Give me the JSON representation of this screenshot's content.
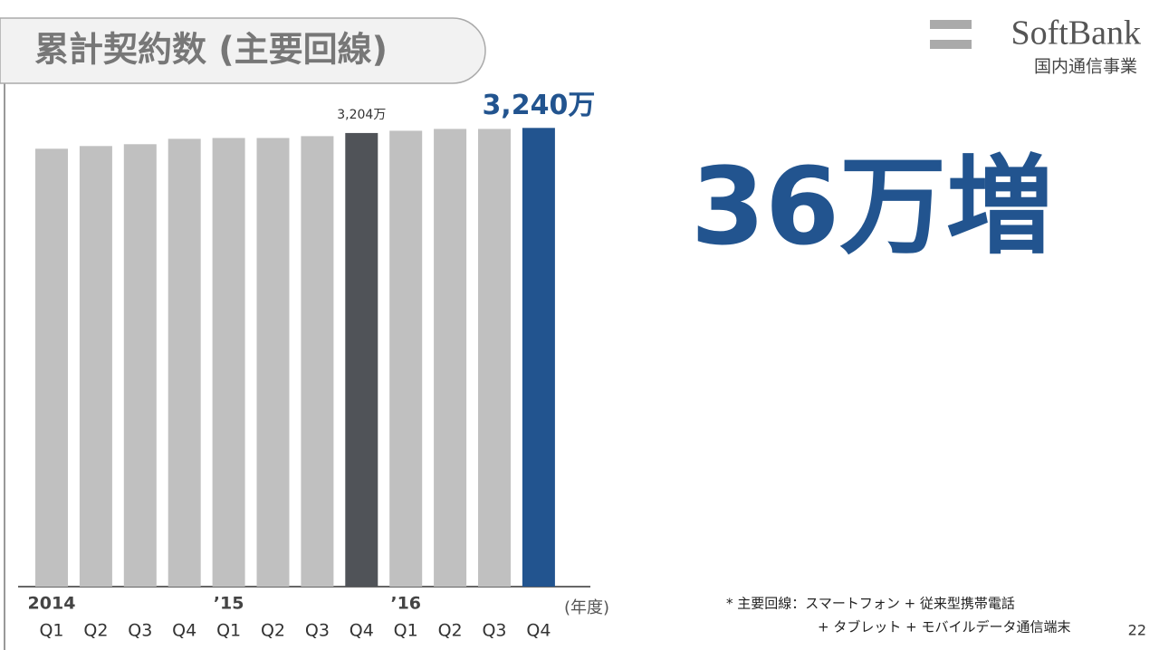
{
  "chart_data": {
    "type": "bar",
    "title": "累計契約数 (主要回線)",
    "categories": [
      "Q1",
      "Q2",
      "Q3",
      "Q4",
      "Q1",
      "Q2",
      "Q3",
      "Q4",
      "Q1",
      "Q2",
      "Q3",
      "Q4"
    ],
    "category_years": [
      "2014",
      null,
      null,
      null,
      "’15",
      null,
      null,
      null,
      "’16",
      null,
      null,
      null
    ],
    "values": [
      3093,
      3112,
      3125,
      3163,
      3169,
      3169,
      3182,
      3204,
      3220,
      3233,
      3233,
      3240
    ],
    "value_labels": [
      null,
      null,
      null,
      null,
      null,
      null,
      null,
      "3,204万",
      null,
      null,
      null,
      "3,240万"
    ],
    "bar_colors": [
      "#c0c0c0",
      "#c0c0c0",
      "#c0c0c0",
      "#c0c0c0",
      "#c0c0c0",
      "#c0c0c0",
      "#c0c0c0",
      "#505358",
      "#c0c0c0",
      "#c0c0c0",
      "#c0c0c0",
      "#22548f"
    ],
    "ylim": [
      0,
      3600
    ],
    "x_axis_label": "(年度)",
    "annotation": "36万増",
    "footnote": [
      "* 主要回線：スマートフォン + 従来型携帯電話",
      "+ タブレット + モバイルデータ通信端末"
    ]
  },
  "header": {
    "logo": "SoftBank",
    "division": "国内通信事業"
  },
  "page_number": "22"
}
